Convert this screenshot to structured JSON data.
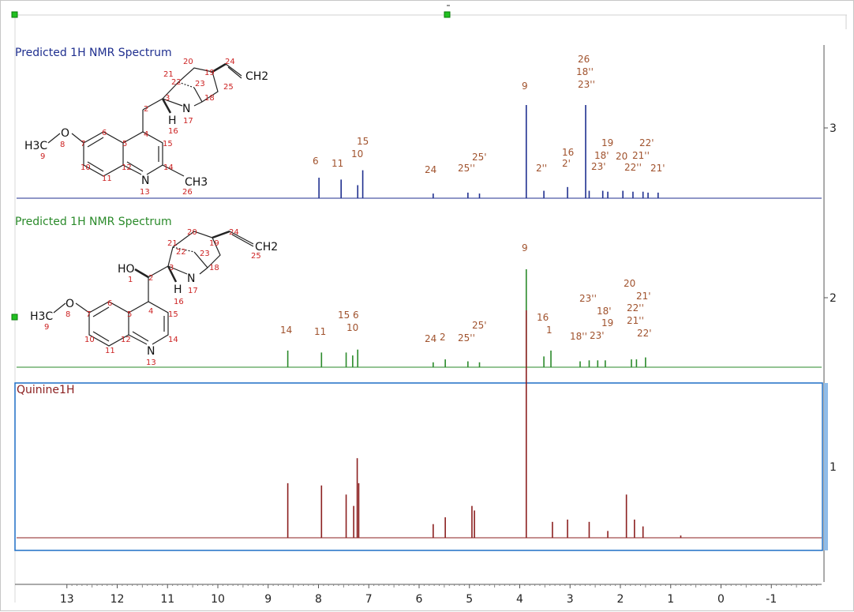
{
  "colors": {
    "top": "#1f2f8f",
    "mid": "#2a8a2a",
    "bot": "#8b1f1f",
    "label": "#a0522d",
    "struct_red": "#cc2222",
    "select_blue": "#1f6fc5",
    "scroll_blue": "#8fbce9",
    "handle_green": "#20c020",
    "axis": "#555555"
  },
  "panel_titles": {
    "top": "Predicted 1H NMR Spectrum",
    "mid": "Predicted 1H NMR Spectrum",
    "bot": "Quinine1H"
  },
  "right_axis": {
    "labels": [
      "3",
      "2",
      "1"
    ]
  },
  "x_axis_ticks": [
    "13",
    "12",
    "11",
    "10",
    "9",
    "8",
    "7",
    "6",
    "5",
    "4",
    "3",
    "2",
    "1",
    "0",
    "-1"
  ],
  "top_molecule": {
    "atoms": [
      "20",
      "24",
      "21",
      "19",
      "22",
      "23",
      "25",
      "2",
      "3",
      "18",
      "N",
      "17",
      "H",
      "16",
      "CH2",
      "6",
      "4",
      "15",
      "O",
      "8",
      "H3C",
      "9",
      "7",
      "5",
      "10",
      "12",
      "14",
      "11",
      "N",
      "CH3",
      "13",
      "26"
    ]
  },
  "mid_molecule": {
    "atoms": [
      "20",
      "24",
      "21",
      "19",
      "22",
      "23",
      "25",
      "CH2",
      "HO",
      "2",
      "3",
      "N",
      "18",
      "1",
      "H",
      "17",
      "16",
      "6",
      "4",
      "15",
      "O",
      "8",
      "H3C",
      "9",
      "7",
      "5",
      "10",
      "12",
      "14",
      "11",
      "N",
      "13"
    ]
  },
  "top_labels": [
    "26",
    "18''",
    "23''",
    "9",
    "15",
    "10",
    "11",
    "6",
    "19",
    "22'",
    "25'",
    "16",
    "24",
    "25''",
    "2'",
    "2''",
    "18'",
    "20",
    "21''",
    "23'",
    "22''",
    "21'"
  ],
  "mid_labels": [
    "9",
    "20",
    "21'",
    "23''",
    "22''",
    "18'",
    "21''",
    "16",
    "15",
    "6",
    "19",
    "14",
    "11",
    "10",
    "1",
    "25'",
    "24",
    "2",
    "25''",
    "18''",
    "23'",
    "22'"
  ],
  "chart_data": [
    {
      "type": "line",
      "title": "Predicted 1H NMR Spectrum",
      "xlim": [
        14.0,
        -2.0
      ],
      "xlabel": "",
      "ylabel": "",
      "peaks": [
        {
          "ppm": 7.99,
          "h": 0.22
        },
        {
          "ppm": 7.55,
          "h": 0.2
        },
        {
          "ppm": 7.22,
          "h": 0.14
        },
        {
          "ppm": 7.12,
          "h": 0.3
        },
        {
          "ppm": 5.72,
          "h": 0.05
        },
        {
          "ppm": 5.03,
          "h": 0.06
        },
        {
          "ppm": 4.8,
          "h": 0.05
        },
        {
          "ppm": 3.87,
          "h": 1.0
        },
        {
          "ppm": 3.52,
          "h": 0.08
        },
        {
          "ppm": 3.05,
          "h": 0.12
        },
        {
          "ppm": 2.69,
          "h": 1.0
        },
        {
          "ppm": 2.62,
          "h": 0.08
        },
        {
          "ppm": 2.35,
          "h": 0.08
        },
        {
          "ppm": 2.25,
          "h": 0.07
        },
        {
          "ppm": 1.95,
          "h": 0.08
        },
        {
          "ppm": 1.75,
          "h": 0.07
        },
        {
          "ppm": 1.55,
          "h": 0.07
        },
        {
          "ppm": 1.45,
          "h": 0.06
        },
        {
          "ppm": 1.25,
          "h": 0.06
        }
      ]
    },
    {
      "type": "line",
      "title": "Predicted 1H NMR Spectrum",
      "xlim": [
        14.0,
        -2.0
      ],
      "xlabel": "",
      "ylabel": "",
      "peaks": [
        {
          "ppm": 8.61,
          "h": 0.17
        },
        {
          "ppm": 7.94,
          "h": 0.15
        },
        {
          "ppm": 7.45,
          "h": 0.15
        },
        {
          "ppm": 7.32,
          "h": 0.12
        },
        {
          "ppm": 7.22,
          "h": 0.18
        },
        {
          "ppm": 5.72,
          "h": 0.05
        },
        {
          "ppm": 5.48,
          "h": 0.08
        },
        {
          "ppm": 5.03,
          "h": 0.06
        },
        {
          "ppm": 4.8,
          "h": 0.05
        },
        {
          "ppm": 3.87,
          "h": 1.0
        },
        {
          "ppm": 3.52,
          "h": 0.11
        },
        {
          "ppm": 3.38,
          "h": 0.17
        },
        {
          "ppm": 2.8,
          "h": 0.06
        },
        {
          "ppm": 2.62,
          "h": 0.07
        },
        {
          "ppm": 2.45,
          "h": 0.07
        },
        {
          "ppm": 2.3,
          "h": 0.07
        },
        {
          "ppm": 1.78,
          "h": 0.08
        },
        {
          "ppm": 1.68,
          "h": 0.08
        },
        {
          "ppm": 1.5,
          "h": 0.1
        }
      ]
    },
    {
      "type": "line",
      "title": "Quinine1H",
      "xlim": [
        14.0,
        -2.0
      ],
      "xlabel": "",
      "ylabel": "",
      "peaks": [
        {
          "ppm": 8.61,
          "h": 0.24
        },
        {
          "ppm": 7.94,
          "h": 0.23
        },
        {
          "ppm": 7.45,
          "h": 0.19
        },
        {
          "ppm": 7.3,
          "h": 0.14
        },
        {
          "ppm": 7.23,
          "h": 0.35
        },
        {
          "ppm": 7.2,
          "h": 0.24
        },
        {
          "ppm": 5.72,
          "h": 0.06
        },
        {
          "ppm": 5.48,
          "h": 0.09
        },
        {
          "ppm": 4.95,
          "h": 0.14
        },
        {
          "ppm": 4.9,
          "h": 0.12
        },
        {
          "ppm": 3.87,
          "h": 1.0
        },
        {
          "ppm": 3.35,
          "h": 0.07
        },
        {
          "ppm": 3.05,
          "h": 0.08
        },
        {
          "ppm": 2.62,
          "h": 0.07
        },
        {
          "ppm": 2.25,
          "h": 0.03
        },
        {
          "ppm": 1.88,
          "h": 0.19
        },
        {
          "ppm": 1.72,
          "h": 0.08
        },
        {
          "ppm": 1.55,
          "h": 0.05
        },
        {
          "ppm": 0.8,
          "h": 0.01
        }
      ]
    }
  ]
}
